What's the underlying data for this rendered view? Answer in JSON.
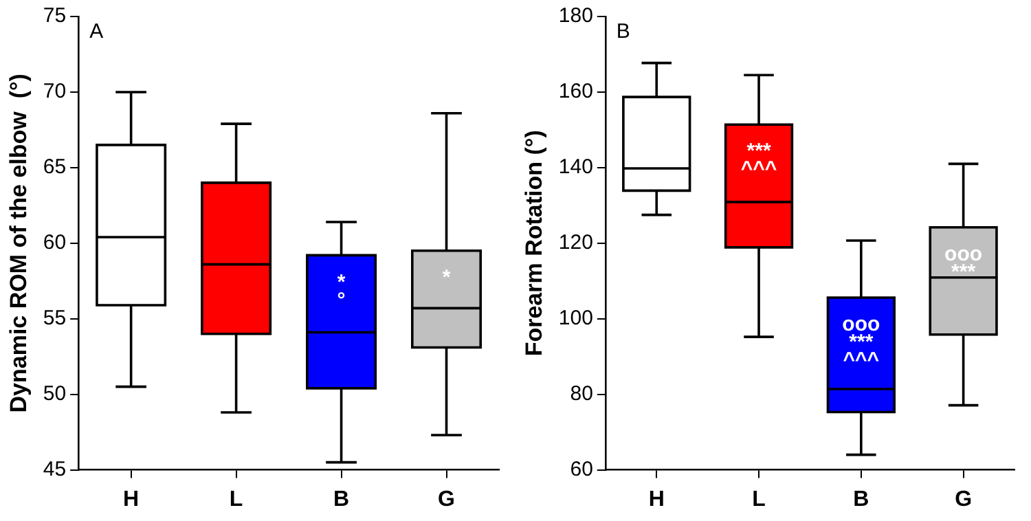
{
  "chart_data": [
    {
      "type": "box",
      "title": "A",
      "ylabel": "Dynamic ROM of the elbow  (°)",
      "categories": [
        "H",
        "L",
        "B",
        "G"
      ],
      "colors": [
        "#ffffff",
        "#ff0000",
        "#0000ff",
        "#c0c0c0"
      ],
      "boxes": [
        {
          "low": 50.5,
          "q1": 55.9,
          "median": 60.4,
          "q3": 66.5,
          "high": 70.0
        },
        {
          "low": 48.8,
          "q1": 54.0,
          "median": 58.6,
          "q3": 64.0,
          "high": 67.9
        },
        {
          "low": 45.5,
          "q1": 50.4,
          "median": 54.1,
          "q3": 59.2,
          "high": 61.4
        },
        {
          "low": 47.3,
          "q1": 53.1,
          "median": 55.7,
          "q3": 59.5,
          "high": 68.6
        }
      ],
      "ylim": [
        45,
        75
      ],
      "yticks": [
        45,
        50,
        55,
        60,
        65,
        70,
        75
      ],
      "annotations": [
        "*\n°",
        "*"
      ]
    },
    {
      "type": "box",
      "title": "B",
      "ylabel": "Forearm Rotation (°)",
      "categories": [
        "H",
        "L",
        "B",
        "G"
      ],
      "colors": [
        "#ffffff",
        "#ff0000",
        "#0000ff",
        "#c0c0c0"
      ],
      "boxes": [
        {
          "low": 127.5,
          "q1": 133.9,
          "median": 139.8,
          "q3": 158.7,
          "high": 167.7
        },
        {
          "low": 95.2,
          "q1": 118.9,
          "median": 130.9,
          "q3": 151.4,
          "high": 164.5
        },
        {
          "low": 64.0,
          "q1": 75.3,
          "median": 81.4,
          "q3": 105.6,
          "high": 120.7
        },
        {
          "low": 77.1,
          "q1": 95.8,
          "median": 110.9,
          "q3": 124.2,
          "high": 141.0
        }
      ],
      "ylim": [
        60,
        180
      ],
      "yticks": [
        60,
        80,
        100,
        120,
        140,
        160,
        180
      ],
      "annotations": [
        "***\n^^^",
        "ooo\n***\n^^^",
        "ooo\n***"
      ]
    }
  ]
}
